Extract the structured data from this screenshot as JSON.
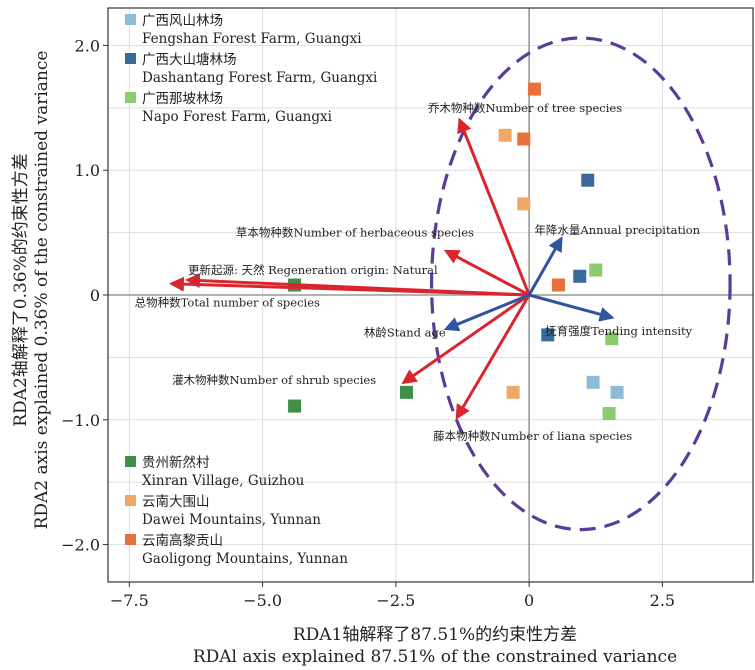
{
  "chart_data": {
    "type": "scatter",
    "xlabel_cn": "RDA1轴解释了87.51%的约束性方差",
    "xlabel_en": "RDAl axis explained 87.51% of the constrained variance",
    "ylabel_cn": "RDA2轴解释了0.36%的约束性方差",
    "ylabel_en": "RDA2 axis explained 0.36% of the constrained variance",
    "xlim": [
      -7.9,
      4.2
    ],
    "ylim": [
      -2.3,
      2.3
    ],
    "xticks": [
      -7.5,
      -5.0,
      -2.5,
      0,
      2.5
    ],
    "xtick_labels": [
      "−7.5",
      "−5.0",
      "−2.5",
      "0",
      "2.5"
    ],
    "yticks": [
      2.0,
      1.0,
      0,
      -1.0,
      -2.0
    ],
    "ytick_labels": [
      "2.0",
      "1.0",
      "0",
      "−1.0",
      "−2.0"
    ],
    "grid": true,
    "series": [
      {
        "name_cn": "广西风山林场",
        "name_en": "Fengshan Forest Farm, Guangxi",
        "color": "#8dbbd8",
        "points": [
          [
            1.2,
            -0.7
          ],
          [
            1.65,
            -0.78
          ]
        ]
      },
      {
        "name_cn": "广西大山塘林场",
        "name_en": "Dashantang Forest Farm, Guangxi",
        "color": "#3a6a9a",
        "points": [
          [
            1.1,
            0.92
          ],
          [
            0.95,
            0.15
          ],
          [
            0.35,
            -0.32
          ]
        ]
      },
      {
        "name_cn": "广西那坡林场",
        "name_en": "Napo Forest Farm, Guangxi",
        "color": "#8ccc6c",
        "points": [
          [
            1.25,
            0.2
          ],
          [
            1.55,
            -0.35
          ],
          [
            1.5,
            -0.95
          ]
        ]
      },
      {
        "name_cn": "贵州新然村",
        "name_en": "Xinran Village, Guizhou",
        "color": "#3f8f47",
        "points": [
          [
            -4.4,
            0.08
          ],
          [
            -4.4,
            -0.89
          ],
          [
            -2.3,
            -0.78
          ]
        ]
      },
      {
        "name_cn": "云南大围山",
        "name_en": "Dawei Mountains, Yunnan",
        "color": "#f0a868",
        "points": [
          [
            -0.45,
            1.28
          ],
          [
            -0.1,
            0.73
          ],
          [
            -0.3,
            -0.78
          ]
        ]
      },
      {
        "name_cn": "云南高黎贡山",
        "name_en": "Gaoligong Mountains, Yunnan",
        "color": "#e8703a",
        "points": [
          [
            0.1,
            1.65
          ],
          [
            -0.1,
            1.25
          ],
          [
            0.55,
            0.08
          ]
        ]
      }
    ],
    "arrows": [
      {
        "label": "乔木物种数Number of tree species",
        "end": [
          -1.3,
          1.4
        ],
        "color": "#d9262e",
        "lx": -1.9,
        "ly": 1.5
      },
      {
        "label": "草本物种数Number of herbaceous species",
        "end": [
          -1.55,
          0.35
        ],
        "color": "#d9262e",
        "lx": -5.5,
        "ly": 0.5
      },
      {
        "label": "更新起源: 天然 Regeneration origin: Natural",
        "end": [
          -6.7,
          0.09
        ],
        "color": "#d9262e",
        "lx": -6.4,
        "ly": 0.2
      },
      {
        "label": "灌木物种数Number of shrub species",
        "end": [
          -2.35,
          -0.7
        ],
        "color": "#d9262e",
        "lx": -6.7,
        "ly": -0.68
      },
      {
        "label": "藤本物种数Number of liana species",
        "end": [
          -1.35,
          -0.98
        ],
        "color": "#d9262e",
        "lx": -1.8,
        "ly": -1.13
      },
      {
        "label": "总物种数Total number of species",
        "end": [
          -6.4,
          0.12
        ],
        "color": "#d9262e",
        "lx": -7.4,
        "ly": -0.06
      },
      {
        "label": "年降水量Annual precipitation",
        "end": [
          0.6,
          0.45
        ],
        "color": "#2e55a0",
        "lx": 0.1,
        "ly": 0.52
      },
      {
        "label": "林龄Stand age",
        "end": [
          -1.55,
          -0.27
        ],
        "color": "#2e55a0",
        "lx": -3.1,
        "ly": -0.3
      },
      {
        "label": "抚育强度Tending intensity",
        "end": [
          1.55,
          -0.18
        ],
        "color": "#2e55a0",
        "lx": 0.3,
        "ly": -0.29
      }
    ],
    "ellipse": {
      "cx": 0.97,
      "cy": 0.09,
      "rx": 2.8,
      "ry": 1.97,
      "color": "#5a3d9a"
    }
  }
}
